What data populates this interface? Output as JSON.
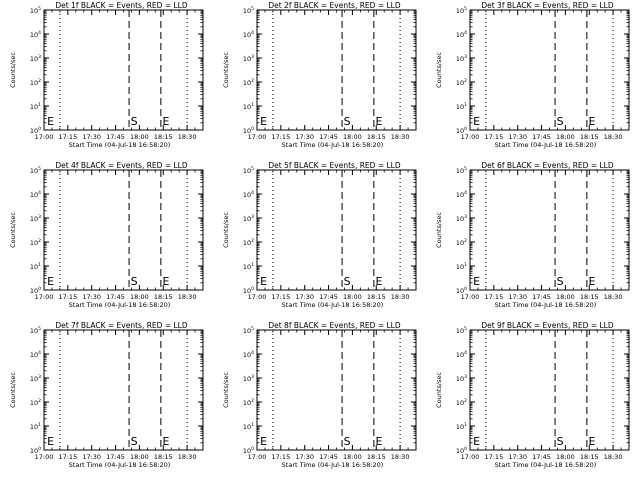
{
  "chart_data": [
    {
      "type": "line",
      "title": "Det 1f BLACK = Events, RED = LLD",
      "xlabel": "Start Time (04-Jul-18 16:58:20)",
      "ylabel": "Counts/sec",
      "x_tick_labels": [
        "17:00",
        "17:15",
        "17:30",
        "17:45",
        "18:00",
        "18:15",
        "18:30"
      ],
      "xlim_min": [
        1020,
        1120
      ],
      "y_tick_exponents": [
        0,
        1,
        2,
        3,
        4,
        5
      ],
      "yscale": "log",
      "ylim": [
        1,
        100000
      ],
      "dotted_lines_min": [
        1030,
        1110
      ],
      "dashed_lines_min": [
        1073.5,
        1093.5
      ],
      "markers": [
        {
          "label": "E",
          "x_min": 1022
        },
        {
          "label": "S",
          "x_min": 1074.5
        },
        {
          "label": "E",
          "x_min": 1094.5
        }
      ],
      "series": []
    },
    {
      "type": "line",
      "title": "Det 2f BLACK = Events, RED = LLD",
      "xlabel": "Start Time (04-Jul-18 16:58:20)",
      "ylabel": "Counts/sec",
      "x_tick_labels": [
        "17:00",
        "17:15",
        "17:30",
        "17:45",
        "18:00",
        "18:15",
        "18:30"
      ],
      "xlim_min": [
        1020,
        1120
      ],
      "y_tick_exponents": [
        0,
        1,
        2,
        3,
        4,
        5
      ],
      "yscale": "log",
      "ylim": [
        1,
        100000
      ],
      "dotted_lines_min": [
        1030,
        1110
      ],
      "dashed_lines_min": [
        1073.5,
        1093.5
      ],
      "markers": [
        {
          "label": "E",
          "x_min": 1022
        },
        {
          "label": "S",
          "x_min": 1074.5
        },
        {
          "label": "E",
          "x_min": 1094.5
        }
      ],
      "series": []
    },
    {
      "type": "line",
      "title": "Det 3f BLACK = Events, RED = LLD",
      "xlabel": "Start Time (04-Jul-18 16:58:20)",
      "ylabel": "Counts/sec",
      "x_tick_labels": [
        "17:00",
        "17:15",
        "17:30",
        "17:45",
        "18:00",
        "18:15",
        "18:30"
      ],
      "xlim_min": [
        1020,
        1120
      ],
      "y_tick_exponents": [
        0,
        1,
        2,
        3,
        4,
        5
      ],
      "yscale": "log",
      "ylim": [
        1,
        100000
      ],
      "dotted_lines_min": [
        1030,
        1110
      ],
      "dashed_lines_min": [
        1073.5,
        1093.5
      ],
      "markers": [
        {
          "label": "E",
          "x_min": 1022
        },
        {
          "label": "S",
          "x_min": 1074.5
        },
        {
          "label": "E",
          "x_min": 1094.5
        }
      ],
      "series": []
    },
    {
      "type": "line",
      "title": "Det 4f BLACK = Events, RED = LLD",
      "xlabel": "Start Time (04-Jul-18 16:58:20)",
      "ylabel": "Counts/sec",
      "x_tick_labels": [
        "17:00",
        "17:15",
        "17:30",
        "17:45",
        "18:00",
        "18:15",
        "18:30"
      ],
      "xlim_min": [
        1020,
        1120
      ],
      "y_tick_exponents": [
        0,
        1,
        2,
        3,
        4,
        5
      ],
      "yscale": "log",
      "ylim": [
        1,
        100000
      ],
      "dotted_lines_min": [
        1030,
        1110
      ],
      "dashed_lines_min": [
        1073.5,
        1093.5
      ],
      "markers": [
        {
          "label": "E",
          "x_min": 1022
        },
        {
          "label": "S",
          "x_min": 1074.5
        },
        {
          "label": "E",
          "x_min": 1094.5
        }
      ],
      "series": []
    },
    {
      "type": "line",
      "title": "Det 5f BLACK = Events, RED = LLD",
      "xlabel": "Start Time (04-Jul-18 16:58:20)",
      "ylabel": "Counts/sec",
      "x_tick_labels": [
        "17:00",
        "17:15",
        "17:30",
        "17:45",
        "18:00",
        "18:15",
        "18:30"
      ],
      "xlim_min": [
        1020,
        1120
      ],
      "y_tick_exponents": [
        0,
        1,
        2,
        3,
        4,
        5
      ],
      "yscale": "log",
      "ylim": [
        1,
        100000
      ],
      "dotted_lines_min": [
        1030,
        1110
      ],
      "dashed_lines_min": [
        1073.5,
        1093.5
      ],
      "markers": [
        {
          "label": "E",
          "x_min": 1022
        },
        {
          "label": "S",
          "x_min": 1074.5
        },
        {
          "label": "E",
          "x_min": 1094.5
        }
      ],
      "series": []
    },
    {
      "type": "line",
      "title": "Det 6f BLACK = Events, RED = LLD",
      "xlabel": "Start Time (04-Jul-18 16:58:20)",
      "ylabel": "Counts/sec",
      "x_tick_labels": [
        "17:00",
        "17:15",
        "17:30",
        "17:45",
        "18:00",
        "18:15",
        "18:30"
      ],
      "xlim_min": [
        1020,
        1120
      ],
      "y_tick_exponents": [
        0,
        1,
        2,
        3,
        4,
        5
      ],
      "yscale": "log",
      "ylim": [
        1,
        100000
      ],
      "dotted_lines_min": [
        1030,
        1110
      ],
      "dashed_lines_min": [
        1073.5,
        1093.5
      ],
      "markers": [
        {
          "label": "E",
          "x_min": 1022
        },
        {
          "label": "S",
          "x_min": 1074.5
        },
        {
          "label": "E",
          "x_min": 1094.5
        }
      ],
      "series": []
    },
    {
      "type": "line",
      "title": "Det 7f BLACK = Events, RED = LLD",
      "xlabel": "Start Time (04-Jul-18 16:58:20)",
      "ylabel": "Counts/sec",
      "x_tick_labels": [
        "17:00",
        "17:15",
        "17:30",
        "17:45",
        "18:00",
        "18:15",
        "18:30"
      ],
      "xlim_min": [
        1020,
        1120
      ],
      "y_tick_exponents": [
        0,
        1,
        2,
        3,
        4,
        5
      ],
      "yscale": "log",
      "ylim": [
        1,
        100000
      ],
      "dotted_lines_min": [
        1030,
        1110
      ],
      "dashed_lines_min": [
        1073.5,
        1093.5
      ],
      "markers": [
        {
          "label": "E",
          "x_min": 1022
        },
        {
          "label": "S",
          "x_min": 1074.5
        },
        {
          "label": "E",
          "x_min": 1094.5
        }
      ],
      "series": []
    },
    {
      "type": "line",
      "title": "Det 8f BLACK = Events, RED = LLD",
      "xlabel": "Start Time (04-Jul-18 16:58:20)",
      "ylabel": "Counts/sec",
      "x_tick_labels": [
        "17:00",
        "17:15",
        "17:30",
        "17:45",
        "18:00",
        "18:15",
        "18:30"
      ],
      "xlim_min": [
        1020,
        1120
      ],
      "y_tick_exponents": [
        0,
        1,
        2,
        3,
        4,
        5
      ],
      "yscale": "log",
      "ylim": [
        1,
        100000
      ],
      "dotted_lines_min": [
        1030,
        1110
      ],
      "dashed_lines_min": [
        1073.5,
        1093.5
      ],
      "markers": [
        {
          "label": "E",
          "x_min": 1022
        },
        {
          "label": "S",
          "x_min": 1074.5
        },
        {
          "label": "E",
          "x_min": 1094.5
        }
      ],
      "series": []
    },
    {
      "type": "line",
      "title": "Det 9f BLACK = Events, RED = LLD",
      "xlabel": "Start Time (04-Jul-18 16:58:20)",
      "ylabel": "Counts/sec",
      "x_tick_labels": [
        "17:00",
        "17:15",
        "17:30",
        "17:45",
        "18:00",
        "18:15",
        "18:30"
      ],
      "xlim_min": [
        1020,
        1120
      ],
      "y_tick_exponents": [
        0,
        1,
        2,
        3,
        4,
        5
      ],
      "yscale": "log",
      "ylim": [
        1,
        100000
      ],
      "dotted_lines_min": [
        1030,
        1110
      ],
      "dashed_lines_min": [
        1073.5,
        1093.5
      ],
      "markers": [
        {
          "label": "E",
          "x_min": 1022
        },
        {
          "label": "S",
          "x_min": 1074.5
        },
        {
          "label": "E",
          "x_min": 1094.5
        }
      ],
      "series": []
    }
  ],
  "colors": {
    "background": "#ffffff",
    "foreground": "#000000"
  }
}
